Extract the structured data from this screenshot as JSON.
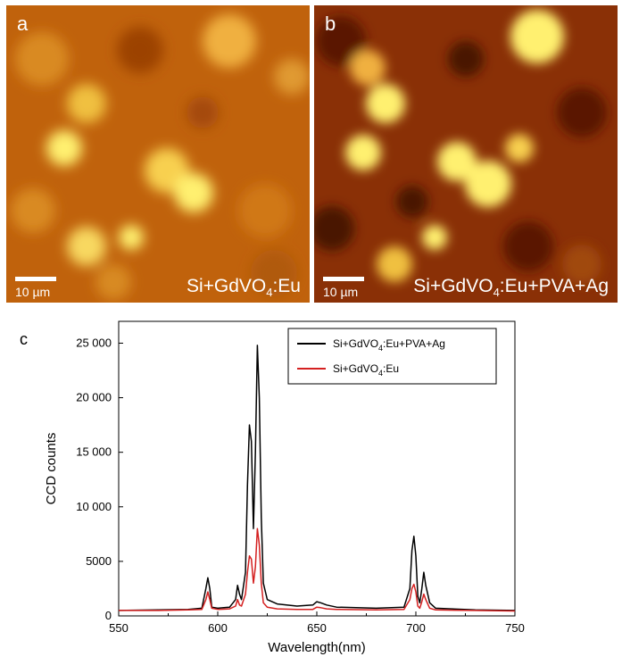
{
  "panels": [
    {
      "letter": "a",
      "scale": "10 µm",
      "label_main": "Si+GdVO",
      "label_sub": "4",
      "label_rest": ":Eu"
    },
    {
      "letter": "b",
      "scale": "10 µm",
      "label_main": "Si+GdVO",
      "label_sub": "4",
      "label_rest": ":Eu+PVA+Ag"
    }
  ],
  "panel_c_letter": "c",
  "colors": {
    "series_ag": "#000000",
    "series_eu": "#d42020",
    "afm_dark": "#5a1800",
    "afm_mid": "#c86a10",
    "afm_bright": "#ffe060"
  },
  "chart_data": {
    "type": "line",
    "xlabel": "Wavelength(nm)",
    "ylabel": "CCD counts",
    "xlim": [
      550,
      750
    ],
    "ylim": [
      0,
      27000
    ],
    "xticks": [
      550,
      600,
      650,
      700,
      750
    ],
    "xtick_labels": [
      "550",
      "600",
      "650",
      "700",
      "750"
    ],
    "yticks": [
      0,
      5000,
      10000,
      15000,
      20000,
      25000
    ],
    "ytick_labels": [
      "0",
      "5000",
      "10 000",
      "15 000",
      "20 000",
      "25 000"
    ],
    "legend_position": "top-right",
    "series": [
      {
        "name": "Si+GdVO4:Eu+PVA+Ag",
        "x": [
          550,
          570,
          585,
          592,
          594,
          595,
          596,
          597,
          600,
          606,
          609,
          610,
          611,
          612,
          614,
          615,
          616,
          617,
          618,
          619,
          620,
          621,
          622,
          623,
          625,
          630,
          640,
          648,
          650,
          652,
          655,
          660,
          680,
          694,
          697,
          698,
          699,
          700,
          701,
          702,
          703,
          704,
          705,
          707,
          710,
          730,
          750
        ],
        "y": [
          500,
          550,
          600,
          700,
          2500,
          3500,
          2500,
          800,
          700,
          800,
          1500,
          2800,
          2000,
          1500,
          4000,
          12000,
          17500,
          16000,
          8000,
          15000,
          24800,
          20000,
          9000,
          3000,
          1500,
          1100,
          900,
          1000,
          1300,
          1200,
          1000,
          800,
          700,
          800,
          2500,
          6000,
          7300,
          5500,
          1800,
          1200,
          2500,
          4000,
          2800,
          1200,
          700,
          550,
          500
        ]
      },
      {
        "name": "Si+GdVO4:Eu",
        "x": [
          550,
          570,
          585,
          592,
          594,
          595,
          596,
          597,
          600,
          606,
          609,
          610,
          611,
          612,
          614,
          615,
          616,
          617,
          618,
          619,
          620,
          621,
          622,
          623,
          625,
          630,
          640,
          648,
          650,
          652,
          655,
          660,
          680,
          694,
          697,
          698,
          699,
          700,
          701,
          702,
          703,
          704,
          705,
          707,
          710,
          730,
          750
        ],
        "y": [
          500,
          500,
          550,
          600,
          1500,
          2200,
          1500,
          700,
          600,
          650,
          900,
          1500,
          1000,
          900,
          2000,
          4000,
          5500,
          5200,
          3000,
          4500,
          8000,
          6500,
          3000,
          1200,
          800,
          650,
          600,
          600,
          800,
          750,
          650,
          600,
          550,
          600,
          1500,
          2500,
          2900,
          2200,
          900,
          700,
          1300,
          2000,
          1500,
          700,
          550,
          500,
          450
        ]
      }
    ]
  }
}
